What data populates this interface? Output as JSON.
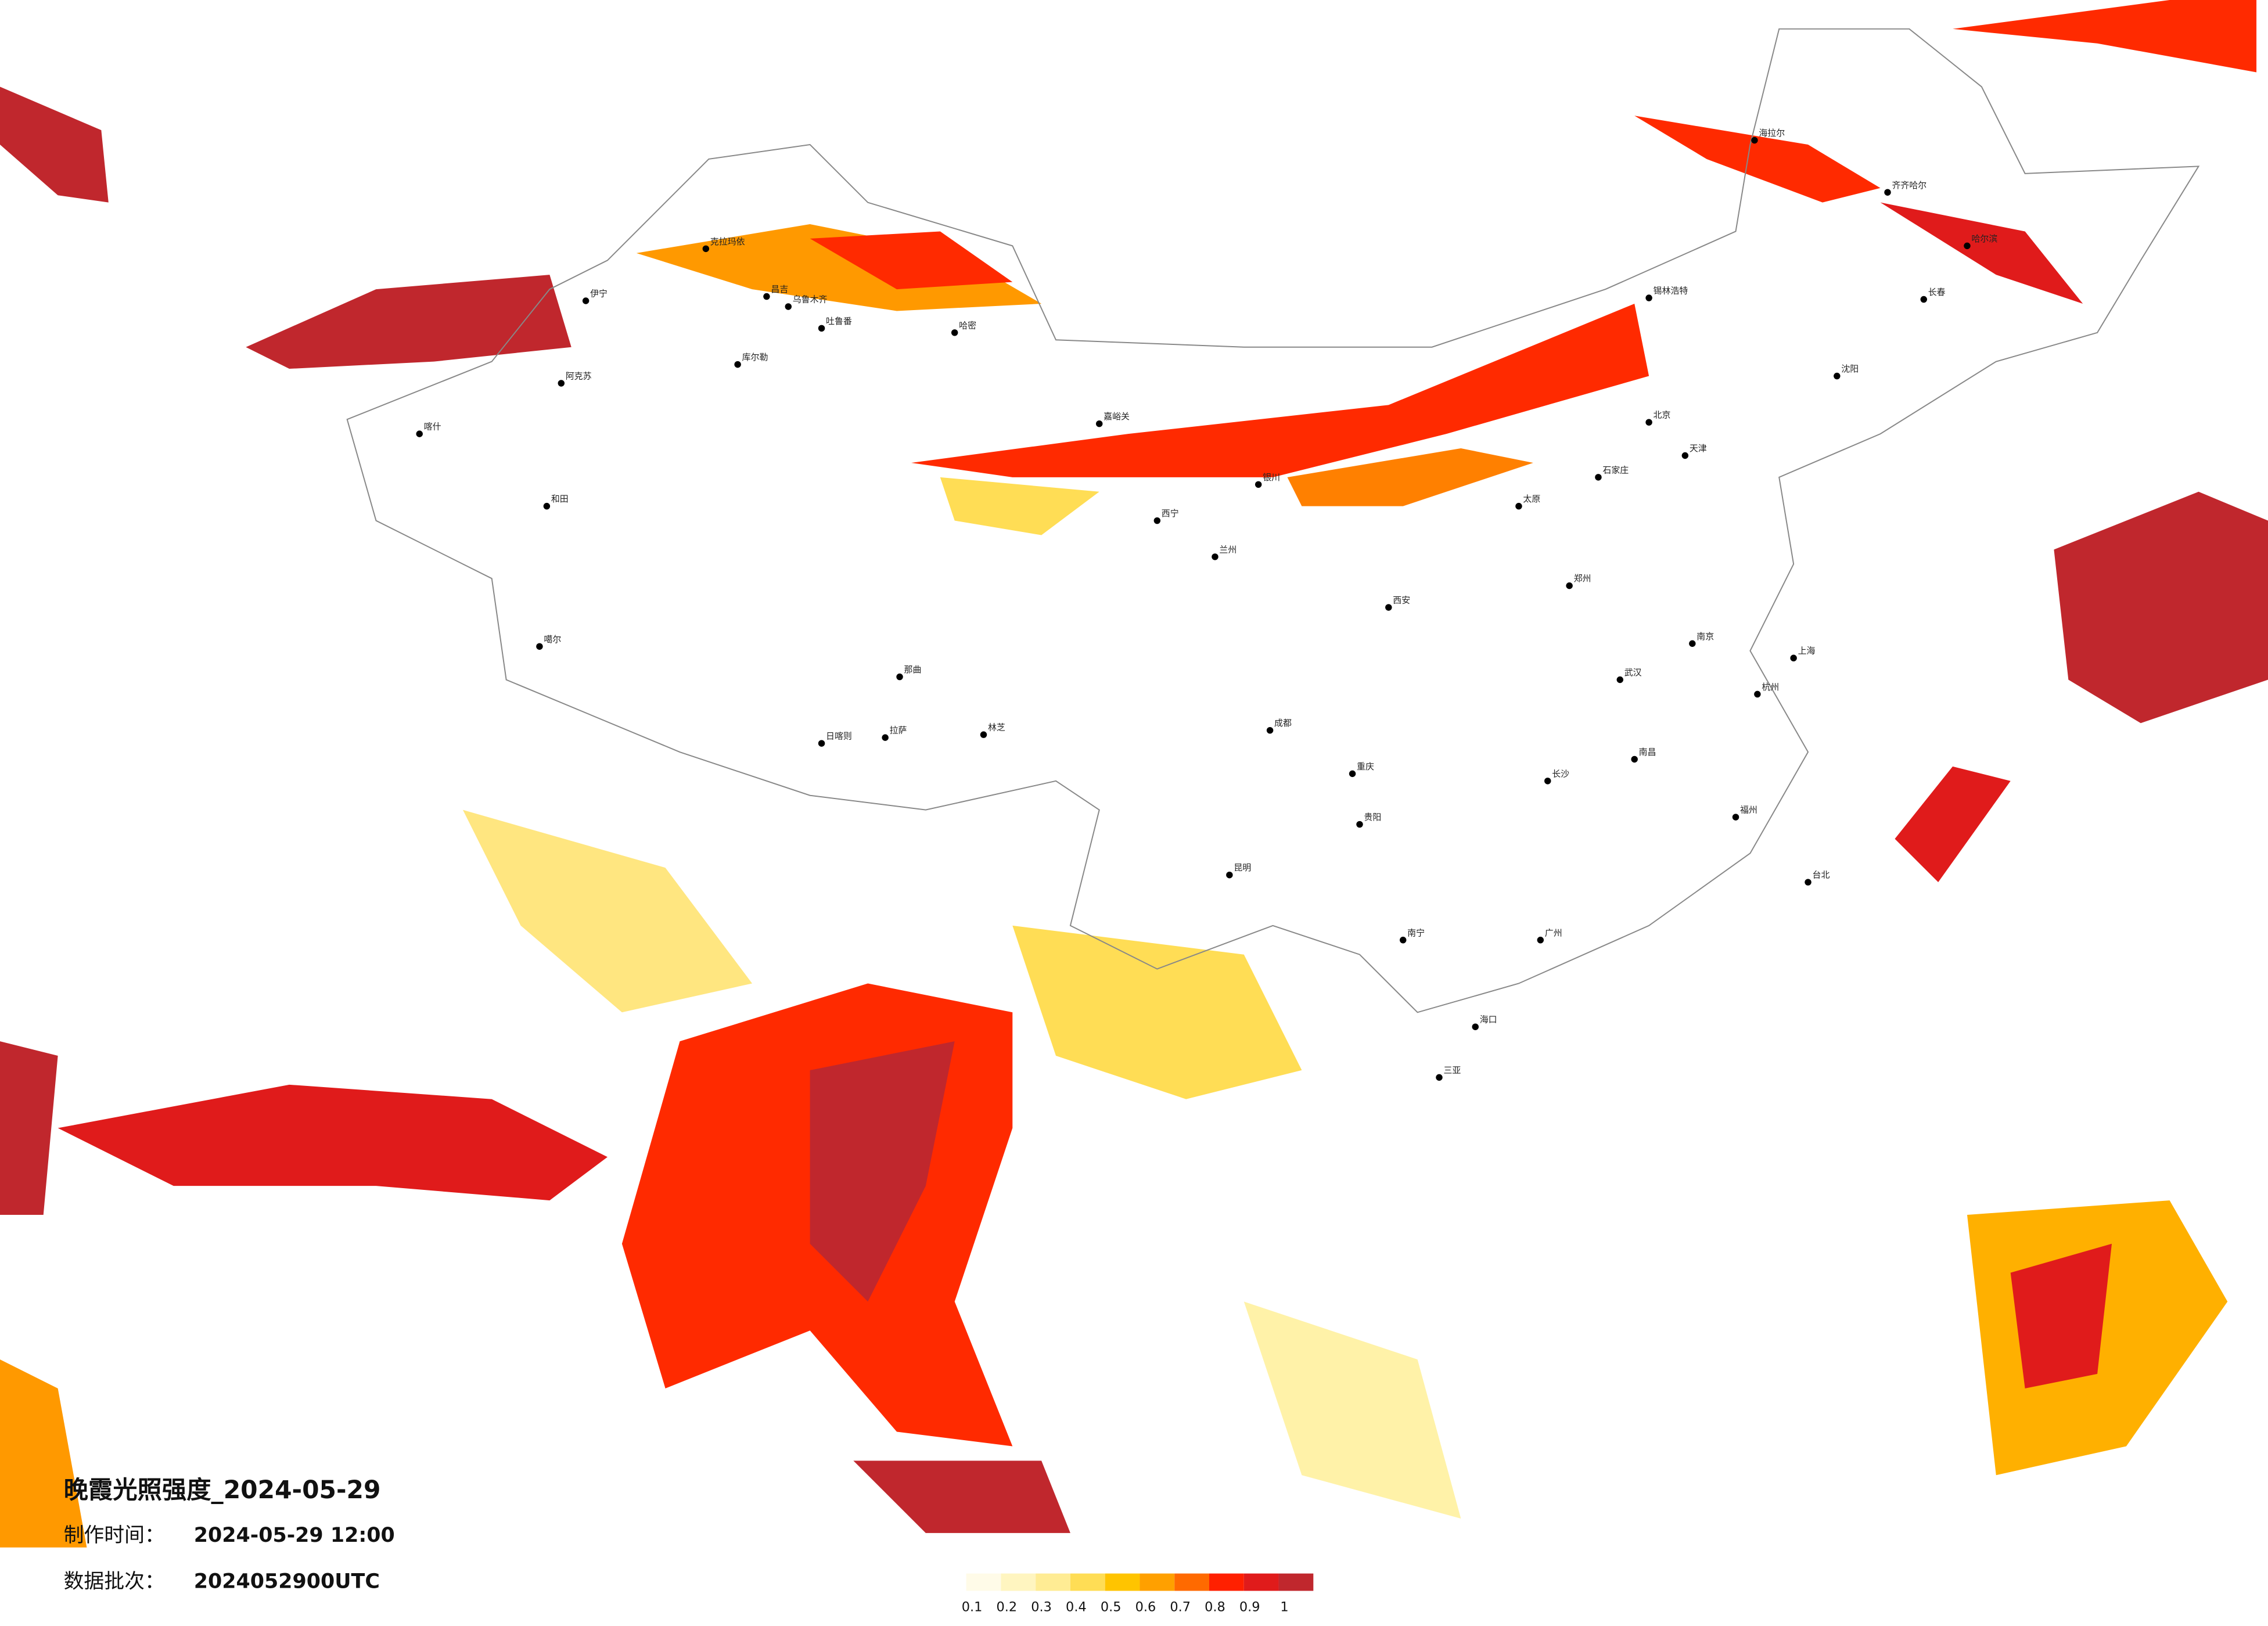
{
  "title": "晚霞光照强度_2024-05-29",
  "production_time": {
    "label": "制作时间：",
    "value": "2024-05-29 12:00"
  },
  "batch": {
    "label": "数据批次：",
    "value": "2024052900UTC"
  },
  "legend": {
    "colors": [
      "#fffbe8",
      "#fff5c0",
      "#ffec94",
      "#ffdd55",
      "#ffc400",
      "#ffa000",
      "#ff6a00",
      "#ff2000",
      "#e01b1b",
      "#c0272d"
    ],
    "labels": [
      "0.1",
      "0.2",
      "0.3",
      "0.4",
      "0.5",
      "0.6",
      "0.7",
      "0.8",
      "0.9",
      "1"
    ]
  },
  "cities": [
    "克拉玛依",
    "伊宁",
    "昌吉",
    "乌鲁木齐",
    "吐鲁番",
    "哈密",
    "库尔勒",
    "阿克苏",
    "喀什",
    "和田",
    "噶尔",
    "那曲",
    "拉萨",
    "日喀则",
    "林芝",
    "嘉峪关",
    "西宁",
    "兰州",
    "银川",
    "锡林浩特",
    "海拉尔",
    "齐齐哈尔",
    "哈尔滨",
    "长春",
    "沈阳",
    "北京",
    "天津",
    "石家庄",
    "太原",
    "郑州",
    "西安",
    "成都",
    "重庆",
    "武汉",
    "长沙",
    "南昌",
    "杭州",
    "上海",
    "南京",
    "福州",
    "广州",
    "南宁",
    "昆明",
    "贵阳",
    "台北",
    "海口",
    "三亚"
  ]
}
